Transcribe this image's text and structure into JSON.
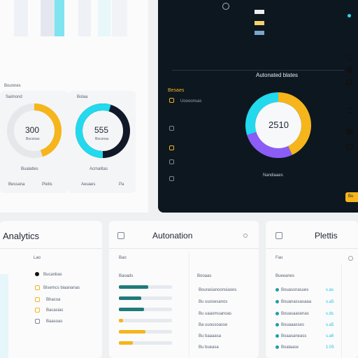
{
  "colors": {
    "accent_yellow": "#f5b51b",
    "accent_cyan": "#22d9ee",
    "accent_purple": "#8b5cf6",
    "dark_bg": "#0d1720",
    "teal": "#1f7a7a"
  },
  "top_left": {
    "gauge1": {
      "value": "300",
      "title": "Saimond",
      "sub": "Boconas",
      "caption": "Bualatles",
      "foot_left": "Bessana",
      "foot_right": "Pietis",
      "progress": 0.45
    },
    "gauge2": {
      "value": "555",
      "title": "Bolaa",
      "sub": "Boconas",
      "caption": "Acmalitas",
      "foot_left": "Aeuaes",
      "foot_right": "Pa",
      "progress": 0.55
    },
    "section_label": "Bounnes"
  },
  "dark_panel": {
    "title": "Autonated blates",
    "donut_value": "2510",
    "donut_caption": "Nandiaaes",
    "section_label": "Besaes",
    "list_header": "Uoooonsas",
    "donut_segments": [
      {
        "name": "yellow",
        "value": 0.43
      },
      {
        "name": "purple",
        "value": 0.27
      },
      {
        "name": "cyan",
        "value": 0.3
      }
    ],
    "side_button": "Bu"
  },
  "bottom": {
    "analytics": {
      "title": "Analytics",
      "col": "Lao",
      "items": [
        "Bucanbas",
        "Bisemcs biaananas",
        "Bhacoa",
        "Bacasias",
        "Baasoas"
      ]
    },
    "automation": {
      "title": "Autonation",
      "col": "Bao",
      "sub": "Baoads",
      "list_title": "Booaas",
      "rows": [
        "Bourasianoonsiaoos",
        "Bu uuosesanos",
        "Bu uaaomuanoas",
        "Ba uuousoasse",
        "Bu baaaasa",
        "Bu bueasa"
      ],
      "bars": [
        0.75,
        0.6,
        0.5,
        0.2,
        0.38,
        0.3
      ]
    },
    "plottis": {
      "title": "Plettis",
      "col": "Fao",
      "list_title": "Bueeanes",
      "rows": [
        "Bouassnasues",
        "Bouanassasaaa",
        "Bouasaasenas",
        "Bouaaasses",
        "Boaasaneass",
        "Boalaase"
      ],
      "values": [
        "s.as",
        "s.a5",
        "s.ds",
        "s.a5",
        "s.a6",
        "1.05"
      ]
    }
  }
}
